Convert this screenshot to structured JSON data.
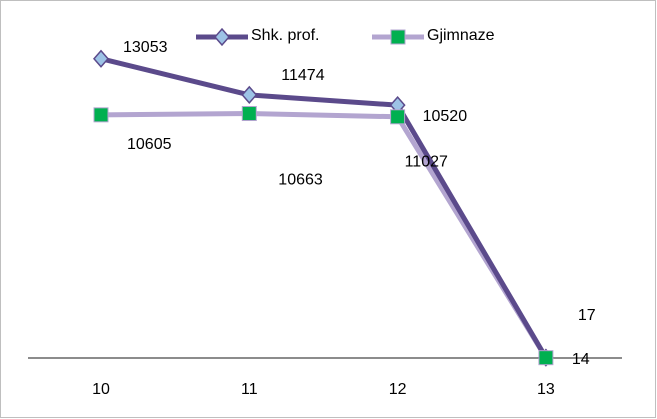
{
  "chart_data": {
    "type": "line",
    "categories": [
      "10",
      "11",
      "12",
      "13"
    ],
    "series": [
      {
        "name": "Shk. prof.",
        "color": "#5b4a8b",
        "marker": "diamond",
        "marker_color": "#9dc3e6",
        "values": [
          13053,
          11474,
          11027,
          17
        ]
      },
      {
        "name": "Gjimnaze",
        "color": "#b3a5d0",
        "marker": "square",
        "marker_color": "#00b050",
        "values": [
          10605,
          10663,
          10520,
          14
        ]
      }
    ],
    "ylim": [
      0,
      14000
    ],
    "legend": "top"
  }
}
